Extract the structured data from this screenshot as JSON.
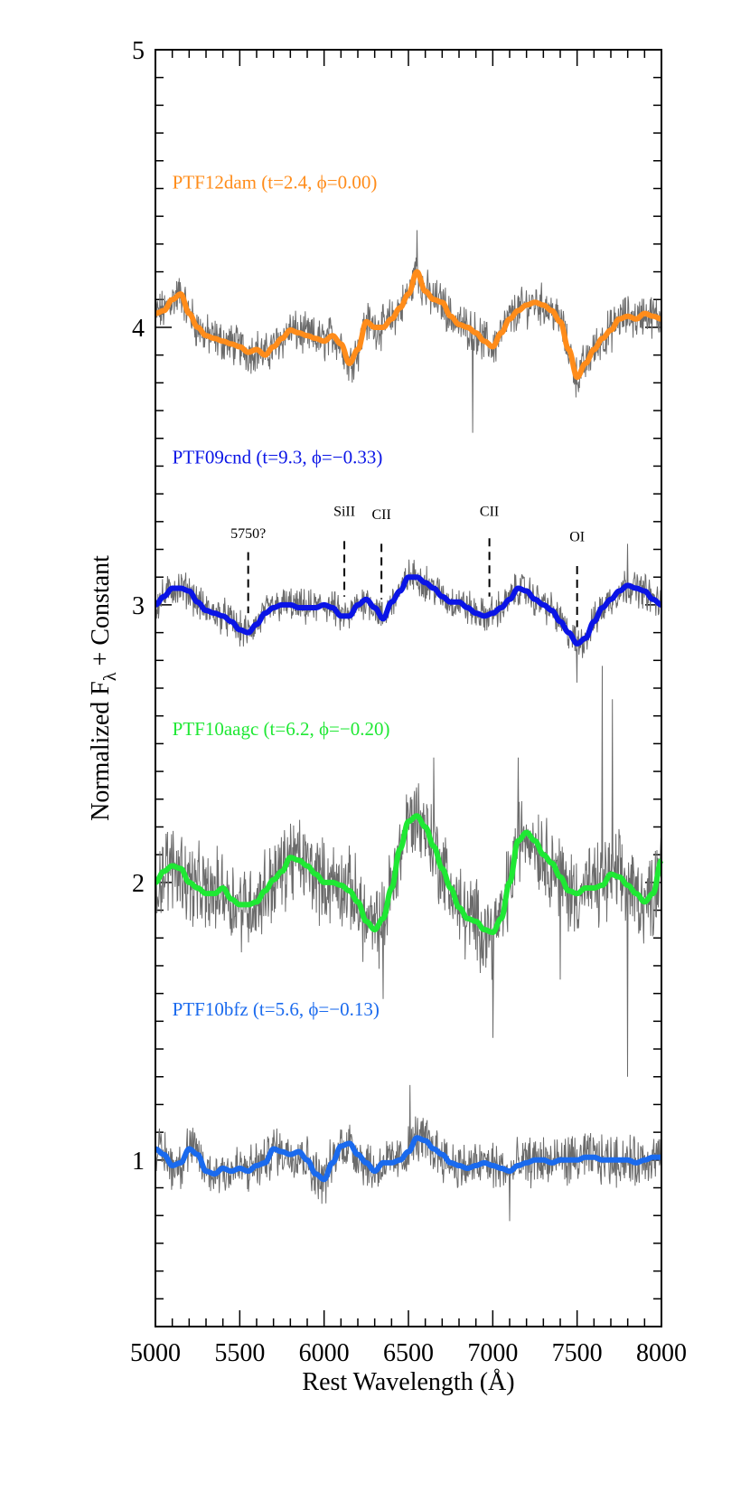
{
  "chart_data": {
    "type": "line",
    "xlabel": "Rest Wavelength (Å)",
    "ylabel_parts": [
      "Normalized F",
      "λ",
      " + Constant"
    ],
    "xlim": [
      5000,
      8000
    ],
    "ylim": [
      0.4,
      5.0
    ],
    "xticks": [
      5000,
      5500,
      6000,
      6500,
      7000,
      7500,
      8000
    ],
    "yticks": [
      1,
      2,
      3,
      4,
      5
    ],
    "x_minor_step": 100,
    "y_minor_step": 0.1,
    "grid": false,
    "series": [
      {
        "name": "PTF12dam  (t=2.4, ϕ=0.00)",
        "color": "#ff8c1a",
        "label_x": 5100,
        "label_y": 4.5,
        "raw_noise": 0.06,
        "raw_spikes": [
          [
            6550,
            4.35
          ],
          [
            6880,
            3.62
          ]
        ],
        "smooth": [
          [
            5000,
            4.05
          ],
          [
            5050,
            4.06
          ],
          [
            5100,
            4.1
          ],
          [
            5150,
            4.12
          ],
          [
            5200,
            4.05
          ],
          [
            5250,
            4.0
          ],
          [
            5300,
            3.97
          ],
          [
            5350,
            3.96
          ],
          [
            5400,
            3.95
          ],
          [
            5450,
            3.94
          ],
          [
            5500,
            3.93
          ],
          [
            5550,
            3.91
          ],
          [
            5600,
            3.92
          ],
          [
            5650,
            3.9
          ],
          [
            5700,
            3.93
          ],
          [
            5750,
            3.96
          ],
          [
            5800,
            3.99
          ],
          [
            5850,
            3.98
          ],
          [
            5900,
            3.97
          ],
          [
            5950,
            3.96
          ],
          [
            6000,
            3.95
          ],
          [
            6050,
            3.97
          ],
          [
            6100,
            3.94
          ],
          [
            6150,
            3.87
          ],
          [
            6200,
            3.92
          ],
          [
            6250,
            4.02
          ],
          [
            6300,
            4.0
          ],
          [
            6350,
            4.0
          ],
          [
            6400,
            4.03
          ],
          [
            6450,
            4.07
          ],
          [
            6500,
            4.12
          ],
          [
            6550,
            4.2
          ],
          [
            6600,
            4.13
          ],
          [
            6650,
            4.1
          ],
          [
            6700,
            4.09
          ],
          [
            6750,
            4.04
          ],
          [
            6800,
            4.01
          ],
          [
            6850,
            4.0
          ],
          [
            6900,
            3.98
          ],
          [
            6950,
            3.95
          ],
          [
            7000,
            3.93
          ],
          [
            7050,
            3.98
          ],
          [
            7100,
            4.03
          ],
          [
            7150,
            4.06
          ],
          [
            7200,
            4.08
          ],
          [
            7250,
            4.09
          ],
          [
            7300,
            4.08
          ],
          [
            7350,
            4.06
          ],
          [
            7400,
            4.02
          ],
          [
            7450,
            3.92
          ],
          [
            7500,
            3.82
          ],
          [
            7550,
            3.87
          ],
          [
            7600,
            3.92
          ],
          [
            7650,
            3.96
          ],
          [
            7700,
            3.99
          ],
          [
            7750,
            4.03
          ],
          [
            7800,
            4.04
          ],
          [
            7850,
            4.03
          ],
          [
            7900,
            4.05
          ],
          [
            7950,
            4.04
          ],
          [
            8000,
            4.03
          ]
        ]
      },
      {
        "name": "PTF09cnd  (t=9.3, ϕ=−0.33)",
        "color": "#0a14e6",
        "label_x": 5100,
        "label_y": 3.51,
        "raw_noise": 0.05,
        "raw_spikes": [
          [
            7500,
            2.72
          ],
          [
            7800,
            3.22
          ]
        ],
        "smooth": [
          [
            5000,
            3.0
          ],
          [
            5050,
            3.03
          ],
          [
            5100,
            3.06
          ],
          [
            5150,
            3.06
          ],
          [
            5200,
            3.05
          ],
          [
            5250,
            3.01
          ],
          [
            5300,
            2.98
          ],
          [
            5350,
            2.97
          ],
          [
            5400,
            2.96
          ],
          [
            5450,
            2.94
          ],
          [
            5500,
            2.91
          ],
          [
            5550,
            2.9
          ],
          [
            5600,
            2.93
          ],
          [
            5650,
            2.97
          ],
          [
            5700,
            2.99
          ],
          [
            5750,
            3.0
          ],
          [
            5800,
            3.0
          ],
          [
            5850,
            2.99
          ],
          [
            5900,
            2.99
          ],
          [
            5950,
            2.99
          ],
          [
            6000,
            3.0
          ],
          [
            6050,
            2.99
          ],
          [
            6100,
            2.96
          ],
          [
            6150,
            2.96
          ],
          [
            6200,
            3.0
          ],
          [
            6250,
            3.02
          ],
          [
            6300,
            2.99
          ],
          [
            6350,
            2.95
          ],
          [
            6400,
            3.01
          ],
          [
            6450,
            3.05
          ],
          [
            6500,
            3.1
          ],
          [
            6550,
            3.1
          ],
          [
            6600,
            3.08
          ],
          [
            6650,
            3.06
          ],
          [
            6700,
            3.03
          ],
          [
            6750,
            3.01
          ],
          [
            6800,
            3.01
          ],
          [
            6850,
            2.99
          ],
          [
            6900,
            2.97
          ],
          [
            6950,
            2.96
          ],
          [
            7000,
            2.97
          ],
          [
            7050,
            2.99
          ],
          [
            7100,
            3.02
          ],
          [
            7150,
            3.06
          ],
          [
            7200,
            3.05
          ],
          [
            7250,
            3.02
          ],
          [
            7300,
            3.0
          ],
          [
            7350,
            2.98
          ],
          [
            7400,
            2.94
          ],
          [
            7450,
            2.9
          ],
          [
            7500,
            2.86
          ],
          [
            7550,
            2.88
          ],
          [
            7600,
            2.94
          ],
          [
            7650,
            2.99
          ],
          [
            7700,
            3.02
          ],
          [
            7750,
            3.05
          ],
          [
            7800,
            3.07
          ],
          [
            7850,
            3.06
          ],
          [
            7900,
            3.05
          ],
          [
            7950,
            3.02
          ],
          [
            8000,
            3.0
          ]
        ]
      },
      {
        "name": "PTF10aagc  (t=6.2, ϕ=−0.20)",
        "color": "#1fe834",
        "label_x": 5100,
        "label_y": 2.53,
        "raw_noise": 0.12,
        "raw_spikes": [
          [
            6650,
            2.45
          ],
          [
            7150,
            2.45
          ],
          [
            7650,
            2.78
          ],
          [
            7710,
            2.66
          ],
          [
            7800,
            1.3
          ],
          [
            7400,
            1.65
          ],
          [
            7000,
            1.44
          ],
          [
            6350,
            1.58
          ]
        ],
        "smooth": [
          [
            5000,
            2.0
          ],
          [
            5050,
            2.04
          ],
          [
            5100,
            2.06
          ],
          [
            5150,
            2.05
          ],
          [
            5200,
            2.0
          ],
          [
            5250,
            1.98
          ],
          [
            5300,
            1.96
          ],
          [
            5350,
            1.96
          ],
          [
            5400,
            1.98
          ],
          [
            5450,
            1.94
          ],
          [
            5500,
            1.92
          ],
          [
            5550,
            1.92
          ],
          [
            5600,
            1.93
          ],
          [
            5650,
            1.97
          ],
          [
            5700,
            2.01
          ],
          [
            5750,
            2.04
          ],
          [
            5800,
            2.09
          ],
          [
            5850,
            2.08
          ],
          [
            5900,
            2.06
          ],
          [
            5950,
            2.03
          ],
          [
            6000,
            2.0
          ],
          [
            6050,
            2.0
          ],
          [
            6100,
            1.99
          ],
          [
            6150,
            1.97
          ],
          [
            6200,
            1.93
          ],
          [
            6250,
            1.86
          ],
          [
            6300,
            1.83
          ],
          [
            6350,
            1.87
          ],
          [
            6400,
            1.98
          ],
          [
            6450,
            2.12
          ],
          [
            6500,
            2.22
          ],
          [
            6550,
            2.24
          ],
          [
            6600,
            2.2
          ],
          [
            6650,
            2.13
          ],
          [
            6700,
            2.05
          ],
          [
            6750,
            1.98
          ],
          [
            6800,
            1.91
          ],
          [
            6850,
            1.87
          ],
          [
            6900,
            1.86
          ],
          [
            6950,
            1.83
          ],
          [
            7000,
            1.82
          ],
          [
            7050,
            1.87
          ],
          [
            7100,
            2.0
          ],
          [
            7150,
            2.15
          ],
          [
            7200,
            2.18
          ],
          [
            7250,
            2.15
          ],
          [
            7300,
            2.1
          ],
          [
            7350,
            2.07
          ],
          [
            7400,
            2.02
          ],
          [
            7450,
            1.97
          ],
          [
            7500,
            1.96
          ],
          [
            7550,
            1.98
          ],
          [
            7600,
            1.98
          ],
          [
            7650,
            1.99
          ],
          [
            7700,
            2.03
          ],
          [
            7750,
            2.02
          ],
          [
            7800,
            1.99
          ],
          [
            7850,
            1.96
          ],
          [
            7900,
            1.93
          ],
          [
            7950,
            1.96
          ],
          [
            8000,
            2.08
          ]
        ]
      },
      {
        "name": "PTF10bfz  (t=5.6, ϕ=−0.13)",
        "color": "#1a6aee",
        "label_x": 5100,
        "label_y": 1.52,
        "raw_noise": 0.07,
        "raw_spikes": [
          [
            6510,
            1.27
          ],
          [
            8000,
            0.72
          ],
          [
            7100,
            0.78
          ]
        ],
        "smooth": [
          [
            5000,
            1.04
          ],
          [
            5050,
            1.02
          ],
          [
            5100,
            0.98
          ],
          [
            5150,
            0.99
          ],
          [
            5200,
            1.04
          ],
          [
            5250,
            1.02
          ],
          [
            5300,
            0.96
          ],
          [
            5350,
            0.95
          ],
          [
            5400,
            0.97
          ],
          [
            5450,
            0.96
          ],
          [
            5500,
            0.97
          ],
          [
            5550,
            0.96
          ],
          [
            5600,
            0.98
          ],
          [
            5650,
            0.99
          ],
          [
            5700,
            1.04
          ],
          [
            5750,
            1.03
          ],
          [
            5800,
            1.02
          ],
          [
            5850,
            1.03
          ],
          [
            5900,
            1.0
          ],
          [
            5950,
            0.95
          ],
          [
            6000,
            0.93
          ],
          [
            6050,
            0.99
          ],
          [
            6100,
            1.05
          ],
          [
            6150,
            1.06
          ],
          [
            6200,
            1.02
          ],
          [
            6250,
            0.99
          ],
          [
            6300,
            0.96
          ],
          [
            6350,
            0.99
          ],
          [
            6400,
            0.99
          ],
          [
            6450,
            1.0
          ],
          [
            6500,
            1.03
          ],
          [
            6550,
            1.08
          ],
          [
            6600,
            1.07
          ],
          [
            6650,
            1.04
          ],
          [
            6700,
            1.02
          ],
          [
            6750,
            0.99
          ],
          [
            6800,
            0.98
          ],
          [
            6850,
            0.97
          ],
          [
            6900,
            0.98
          ],
          [
            6950,
            0.99
          ],
          [
            7000,
            0.98
          ],
          [
            7050,
            0.97
          ],
          [
            7100,
            0.96
          ],
          [
            7150,
            0.98
          ],
          [
            7200,
            0.99
          ],
          [
            7250,
            1.0
          ],
          [
            7300,
            1.0
          ],
          [
            7350,
            0.99
          ],
          [
            7400,
            1.0
          ],
          [
            7450,
            1.0
          ],
          [
            7500,
            1.0
          ],
          [
            7550,
            1.01
          ],
          [
            7600,
            1.01
          ],
          [
            7650,
            1.0
          ],
          [
            7700,
            1.0
          ],
          [
            7750,
            1.0
          ],
          [
            7800,
            1.0
          ],
          [
            7850,
            0.99
          ],
          [
            7900,
            1.0
          ],
          [
            7950,
            1.01
          ],
          [
            8000,
            1.01
          ]
        ]
      }
    ],
    "annotations": [
      {
        "label": "5750?",
        "x": 5550,
        "y_text": 3.24,
        "y_top": 3.19,
        "y_bottom": 2.97
      },
      {
        "label": "SiII",
        "x": 6120,
        "y_text": 3.32,
        "y_top": 3.23,
        "y_bottom": 3.03
      },
      {
        "label": "CII",
        "x": 6340,
        "y_text": 3.31,
        "y_top": 3.22,
        "y_bottom": 3.02
      },
      {
        "label": "CII",
        "x": 6980,
        "y_text": 3.32,
        "y_top": 3.24,
        "y_bottom": 3.03
      },
      {
        "label": "OI",
        "x": 7500,
        "y_text": 3.23,
        "y_top": 3.14,
        "y_bottom": 2.92
      }
    ]
  }
}
